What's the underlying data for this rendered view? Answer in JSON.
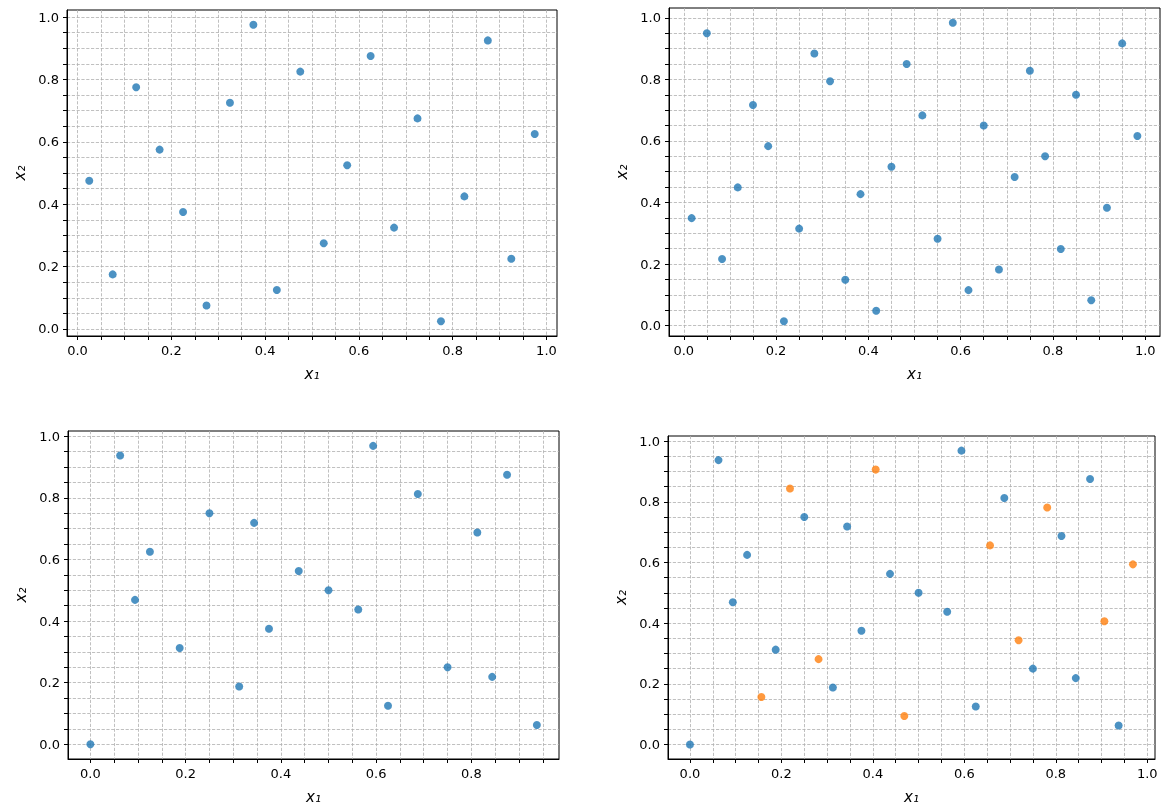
{
  "chart_data": [
    {
      "type": "scatter",
      "xlabel": "x₁",
      "ylabel": "x₂",
      "color": "#1f77b4",
      "marker": "circle",
      "grid": true,
      "x": [
        0.025,
        0.075,
        0.125,
        0.175,
        0.225,
        0.275,
        0.325,
        0.375,
        0.425,
        0.475,
        0.525,
        0.575,
        0.625,
        0.675,
        0.725,
        0.775,
        0.825,
        0.875,
        0.925,
        0.975
      ],
      "values": [
        0.475,
        0.175,
        0.775,
        0.575,
        0.375,
        0.075,
        0.725,
        0.975,
        0.125,
        0.825,
        0.275,
        0.525,
        0.875,
        0.325,
        0.675,
        0.025,
        0.425,
        0.925,
        0.225,
        0.625
      ],
      "xlim": [
        -0.0225,
        1.0225
      ],
      "ylim": [
        -0.0225,
        1.0225
      ],
      "xticks": [
        {
          "value": 0,
          "label": "0.0"
        },
        {
          "value": 0.05,
          "label": null
        },
        {
          "value": 0.1,
          "label": null
        },
        {
          "value": 0.15,
          "label": null
        },
        {
          "value": 0.2,
          "label": "0.2"
        },
        {
          "value": 0.25,
          "label": null
        },
        {
          "value": 0.3,
          "label": null
        },
        {
          "value": 0.35,
          "label": null
        },
        {
          "value": 0.4,
          "label": "0.4"
        },
        {
          "value": 0.45,
          "label": null
        },
        {
          "value": 0.5,
          "label": null
        },
        {
          "value": 0.55,
          "label": null
        },
        {
          "value": 0.6,
          "label": "0.6"
        },
        {
          "value": 0.65,
          "label": null
        },
        {
          "value": 0.7,
          "label": null
        },
        {
          "value": 0.75,
          "label": null
        },
        {
          "value": 0.8,
          "label": "0.8"
        },
        {
          "value": 0.85,
          "label": null
        },
        {
          "value": 0.9,
          "label": null
        },
        {
          "value": 0.95,
          "label": null
        },
        {
          "value": 1,
          "label": "1.0"
        }
      ],
      "yticks": [
        {
          "value": 0,
          "label": "0.0"
        },
        {
          "value": 0.05,
          "label": null
        },
        {
          "value": 0.1,
          "label": null
        },
        {
          "value": 0.15,
          "label": null
        },
        {
          "value": 0.2,
          "label": "0.2"
        },
        {
          "value": 0.25,
          "label": null
        },
        {
          "value": 0.3,
          "label": null
        },
        {
          "value": 0.35,
          "label": null
        },
        {
          "value": 0.4,
          "label": "0.4"
        },
        {
          "value": 0.45,
          "label": null
        },
        {
          "value": 0.5,
          "label": null
        },
        {
          "value": 0.55,
          "label": null
        },
        {
          "value": 0.6,
          "label": "0.6"
        },
        {
          "value": 0.65,
          "label": null
        },
        {
          "value": 0.7,
          "label": null
        },
        {
          "value": 0.75,
          "label": null
        },
        {
          "value": 0.8,
          "label": "0.8"
        },
        {
          "value": 0.85,
          "label": null
        },
        {
          "value": 0.9,
          "label": null
        },
        {
          "value": 0.95,
          "label": null
        },
        {
          "value": 1,
          "label": "1.0"
        }
      ]
    },
    {
      "type": "scatter",
      "xlabel": "x₁",
      "ylabel": "x₂",
      "color": "#1f77b4",
      "marker": "circle",
      "grid": true,
      "x": [
        0.017,
        0.05,
        0.083,
        0.117,
        0.15,
        0.183,
        0.217,
        0.25,
        0.283,
        0.317,
        0.35,
        0.383,
        0.417,
        0.45,
        0.483,
        0.517,
        0.55,
        0.583,
        0.617,
        0.65,
        0.683,
        0.717,
        0.75,
        0.783,
        0.817,
        0.85,
        0.883,
        0.917,
        0.95,
        0.983
      ],
      "values": [
        0.349,
        0.95,
        0.216,
        0.449,
        0.717,
        0.583,
        0.014,
        0.315,
        0.884,
        0.794,
        0.149,
        0.427,
        0.048,
        0.516,
        0.85,
        0.683,
        0.282,
        0.984,
        0.115,
        0.65,
        0.182,
        0.483,
        0.828,
        0.55,
        0.249,
        0.75,
        0.082,
        0.383,
        0.917,
        0.616
      ],
      "xlim": [
        -0.032,
        1.032
      ],
      "ylim": [
        -0.034,
        1.032
      ],
      "xticks": [
        {
          "value": 0,
          "label": "0.0"
        },
        {
          "value": 0.05,
          "label": null
        },
        {
          "value": 0.1,
          "label": null
        },
        {
          "value": 0.15,
          "label": null
        },
        {
          "value": 0.2,
          "label": "0.2"
        },
        {
          "value": 0.25,
          "label": null
        },
        {
          "value": 0.3,
          "label": null
        },
        {
          "value": 0.35,
          "label": null
        },
        {
          "value": 0.4,
          "label": "0.4"
        },
        {
          "value": 0.45,
          "label": null
        },
        {
          "value": 0.5,
          "label": null
        },
        {
          "value": 0.55,
          "label": null
        },
        {
          "value": 0.6,
          "label": "0.6"
        },
        {
          "value": 0.65,
          "label": null
        },
        {
          "value": 0.7,
          "label": null
        },
        {
          "value": 0.75,
          "label": null
        },
        {
          "value": 0.8,
          "label": "0.8"
        },
        {
          "value": 0.85,
          "label": null
        },
        {
          "value": 0.9,
          "label": null
        },
        {
          "value": 0.95,
          "label": null
        },
        {
          "value": 1,
          "label": "1.0"
        }
      ],
      "yticks": [
        {
          "value": 0,
          "label": "0.0"
        },
        {
          "value": 0.05,
          "label": null
        },
        {
          "value": 0.1,
          "label": null
        },
        {
          "value": 0.15,
          "label": null
        },
        {
          "value": 0.2,
          "label": "0.2"
        },
        {
          "value": 0.25,
          "label": null
        },
        {
          "value": 0.3,
          "label": null
        },
        {
          "value": 0.35,
          "label": null
        },
        {
          "value": 0.4,
          "label": "0.4"
        },
        {
          "value": 0.45,
          "label": null
        },
        {
          "value": 0.5,
          "label": null
        },
        {
          "value": 0.55,
          "label": null
        },
        {
          "value": 0.6,
          "label": "0.6"
        },
        {
          "value": 0.65,
          "label": null
        },
        {
          "value": 0.7,
          "label": null
        },
        {
          "value": 0.75,
          "label": null
        },
        {
          "value": 0.8,
          "label": "0.8"
        },
        {
          "value": 0.85,
          "label": null
        },
        {
          "value": 0.9,
          "label": null
        },
        {
          "value": 0.95,
          "label": null
        },
        {
          "value": 1,
          "label": "1.0"
        }
      ]
    },
    {
      "type": "scatter",
      "xlabel": "x₁",
      "ylabel": "x₂",
      "color": "#1f77b4",
      "marker": "circle",
      "grid": true,
      "x": [
        0,
        0.0625,
        0.09375,
        0.125,
        0.1875,
        0.25,
        0.3125,
        0.34375,
        0.375,
        0.4375,
        0.5,
        0.5625,
        0.59375,
        0.625,
        0.6875,
        0.75,
        0.8125,
        0.84375,
        0.875,
        0.9375
      ],
      "values": [
        0,
        0.9375,
        0.46875,
        0.625,
        0.3125,
        0.75,
        0.1875,
        0.71875,
        0.375,
        0.5625,
        0.5,
        0.4375,
        0.96875,
        0.125,
        0.8125,
        0.25,
        0.6875,
        0.21875,
        0.875,
        0.0625
      ],
      "xlim": [
        -0.047,
        0.984
      ],
      "ylim": [
        -0.048,
        1.017
      ],
      "xticks": [
        {
          "value": 0,
          "label": "0.0"
        },
        {
          "value": 0.05,
          "label": null
        },
        {
          "value": 0.1,
          "label": null
        },
        {
          "value": 0.15,
          "label": null
        },
        {
          "value": 0.2,
          "label": "0.2"
        },
        {
          "value": 0.25,
          "label": null
        },
        {
          "value": 0.3,
          "label": null
        },
        {
          "value": 0.35,
          "label": null
        },
        {
          "value": 0.4,
          "label": "0.4"
        },
        {
          "value": 0.45,
          "label": null
        },
        {
          "value": 0.5,
          "label": null
        },
        {
          "value": 0.55,
          "label": null
        },
        {
          "value": 0.6,
          "label": "0.6"
        },
        {
          "value": 0.65,
          "label": null
        },
        {
          "value": 0.7,
          "label": null
        },
        {
          "value": 0.75,
          "label": null
        },
        {
          "value": 0.8,
          "label": "0.8"
        },
        {
          "value": 0.85,
          "label": null
        },
        {
          "value": 0.9,
          "label": null
        },
        {
          "value": 0.95,
          "label": null
        }
      ],
      "yticks": [
        {
          "value": 0,
          "label": "0.0"
        },
        {
          "value": 0.05,
          "label": null
        },
        {
          "value": 0.1,
          "label": null
        },
        {
          "value": 0.15,
          "label": null
        },
        {
          "value": 0.2,
          "label": "0.2"
        },
        {
          "value": 0.25,
          "label": null
        },
        {
          "value": 0.3,
          "label": null
        },
        {
          "value": 0.35,
          "label": null
        },
        {
          "value": 0.4,
          "label": "0.4"
        },
        {
          "value": 0.45,
          "label": null
        },
        {
          "value": 0.5,
          "label": null
        },
        {
          "value": 0.55,
          "label": null
        },
        {
          "value": 0.6,
          "label": "0.6"
        },
        {
          "value": 0.65,
          "label": null
        },
        {
          "value": 0.7,
          "label": null
        },
        {
          "value": 0.75,
          "label": null
        },
        {
          "value": 0.8,
          "label": "0.8"
        },
        {
          "value": 0.85,
          "label": null
        },
        {
          "value": 0.9,
          "label": null
        },
        {
          "value": 0.95,
          "label": null
        },
        {
          "value": 1,
          "label": "1.0"
        }
      ]
    },
    {
      "type": "scatter",
      "xlabel": "x₁",
      "ylabel": "x₂",
      "marker": "circle",
      "grid": true,
      "series": [
        {
          "color": "#1f77b4",
          "x": [
            0,
            0.0625,
            0.09375,
            0.125,
            0.1875,
            0.25,
            0.3125,
            0.34375,
            0.375,
            0.4375,
            0.5,
            0.5625,
            0.59375,
            0.625,
            0.6875,
            0.75,
            0.8125,
            0.84375,
            0.875,
            0.9375
          ],
          "values": [
            0,
            0.9375,
            0.46875,
            0.625,
            0.3125,
            0.75,
            0.1875,
            0.71875,
            0.375,
            0.5625,
            0.5,
            0.4375,
            0.96875,
            0.125,
            0.8125,
            0.25,
            0.6875,
            0.21875,
            0.875,
            0.0625
          ]
        },
        {
          "color": "#ff7f0e",
          "x": [
            0.15625,
            0.21875,
            0.28125,
            0.40625,
            0.46875,
            0.65625,
            0.71875,
            0.78125,
            0.90625,
            0.96875
          ],
          "values": [
            0.15625,
            0.84375,
            0.28125,
            0.90625,
            0.09375,
            0.65625,
            0.34375,
            0.78125,
            0.40625,
            0.59375
          ]
        }
      ],
      "xlim": [
        -0.048,
        1.017
      ],
      "ylim": [
        -0.048,
        1.017
      ],
      "xticks": [
        {
          "value": 0,
          "label": "0.0"
        },
        {
          "value": 0.05,
          "label": null
        },
        {
          "value": 0.1,
          "label": null
        },
        {
          "value": 0.15,
          "label": null
        },
        {
          "value": 0.2,
          "label": "0.2"
        },
        {
          "value": 0.25,
          "label": null
        },
        {
          "value": 0.3,
          "label": null
        },
        {
          "value": 0.35,
          "label": null
        },
        {
          "value": 0.4,
          "label": "0.4"
        },
        {
          "value": 0.45,
          "label": null
        },
        {
          "value": 0.5,
          "label": null
        },
        {
          "value": 0.55,
          "label": null
        },
        {
          "value": 0.6,
          "label": "0.6"
        },
        {
          "value": 0.65,
          "label": null
        },
        {
          "value": 0.7,
          "label": null
        },
        {
          "value": 0.75,
          "label": null
        },
        {
          "value": 0.8,
          "label": "0.8"
        },
        {
          "value": 0.85,
          "label": null
        },
        {
          "value": 0.9,
          "label": null
        },
        {
          "value": 0.95,
          "label": null
        },
        {
          "value": 1,
          "label": "1.0"
        }
      ],
      "yticks": [
        {
          "value": 0,
          "label": "0.0"
        },
        {
          "value": 0.05,
          "label": null
        },
        {
          "value": 0.1,
          "label": null
        },
        {
          "value": 0.15,
          "label": null
        },
        {
          "value": 0.2,
          "label": "0.2"
        },
        {
          "value": 0.25,
          "label": null
        },
        {
          "value": 0.3,
          "label": null
        },
        {
          "value": 0.35,
          "label": null
        },
        {
          "value": 0.4,
          "label": "0.4"
        },
        {
          "value": 0.45,
          "label": null
        },
        {
          "value": 0.5,
          "label": null
        },
        {
          "value": 0.55,
          "label": null
        },
        {
          "value": 0.6,
          "label": "0.6"
        },
        {
          "value": 0.65,
          "label": null
        },
        {
          "value": 0.7,
          "label": null
        },
        {
          "value": 0.75,
          "label": null
        },
        {
          "value": 0.8,
          "label": "0.8"
        },
        {
          "value": 0.85,
          "label": null
        },
        {
          "value": 0.9,
          "label": null
        },
        {
          "value": 0.95,
          "label": null
        },
        {
          "value": 1,
          "label": "1.0"
        }
      ]
    }
  ]
}
